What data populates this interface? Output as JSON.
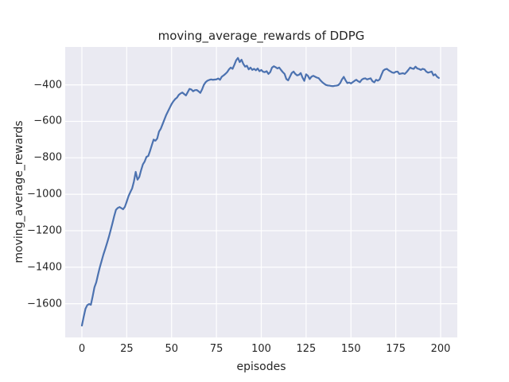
{
  "figure": {
    "title": "moving_average_rewards of DDPG",
    "xlabel": "episodes",
    "ylabel": "moving_average_rewards"
  },
  "chart_data": {
    "type": "line",
    "title": "moving_average_rewards of DDPG",
    "xlabel": "episodes",
    "ylabel": "moving_average_rewards",
    "x_ticks": [
      0,
      25,
      50,
      75,
      100,
      125,
      150,
      175,
      200
    ],
    "y_ticks": [
      -400,
      -600,
      -800,
      -1000,
      -1200,
      -1400,
      -1600
    ],
    "xlim": [
      -9.3,
      209.3
    ],
    "ylim": [
      -1785,
      -192
    ],
    "grid": true,
    "legend": "none",
    "style": "seaborn-darkgrid",
    "plot_background": "#eaeaf2",
    "grid_color": "#ffffff",
    "line_color": "#4c72b0",
    "line_width": 2.2,
    "series": [
      {
        "name": "moving_average_rewards",
        "x_start": 0,
        "x_step": 1,
        "y": [
          -1720,
          -1672,
          -1628,
          -1608,
          -1602,
          -1606,
          -1560,
          -1510,
          -1483,
          -1440,
          -1400,
          -1365,
          -1330,
          -1300,
          -1268,
          -1235,
          -1198,
          -1160,
          -1120,
          -1085,
          -1075,
          -1070,
          -1076,
          -1082,
          -1068,
          -1040,
          -1010,
          -988,
          -968,
          -930,
          -877,
          -920,
          -905,
          -868,
          -836,
          -820,
          -795,
          -790,
          -762,
          -730,
          -700,
          -706,
          -694,
          -656,
          -640,
          -615,
          -590,
          -565,
          -545,
          -525,
          -505,
          -490,
          -478,
          -470,
          -455,
          -447,
          -442,
          -450,
          -458,
          -440,
          -422,
          -425,
          -435,
          -429,
          -428,
          -435,
          -444,
          -425,
          -400,
          -385,
          -377,
          -373,
          -370,
          -372,
          -371,
          -370,
          -365,
          -372,
          -355,
          -348,
          -340,
          -330,
          -315,
          -305,
          -312,
          -290,
          -265,
          -252,
          -275,
          -262,
          -285,
          -300,
          -295,
          -315,
          -305,
          -318,
          -312,
          -320,
          -310,
          -325,
          -318,
          -328,
          -330,
          -325,
          -340,
          -330,
          -305,
          -298,
          -303,
          -310,
          -305,
          -318,
          -330,
          -340,
          -368,
          -375,
          -355,
          -335,
          -327,
          -340,
          -348,
          -345,
          -335,
          -360,
          -378,
          -342,
          -350,
          -368,
          -355,
          -350,
          -355,
          -360,
          -363,
          -375,
          -385,
          -393,
          -400,
          -403,
          -404,
          -406,
          -407,
          -405,
          -404,
          -401,
          -390,
          -370,
          -356,
          -375,
          -390,
          -387,
          -392,
          -385,
          -378,
          -372,
          -380,
          -385,
          -372,
          -366,
          -364,
          -370,
          -367,
          -364,
          -380,
          -386,
          -372,
          -377,
          -370,
          -345,
          -322,
          -315,
          -312,
          -320,
          -326,
          -332,
          -334,
          -328,
          -327,
          -340,
          -338,
          -336,
          -340,
          -330,
          -318,
          -305,
          -310,
          -312,
          -300,
          -310,
          -313,
          -318,
          -312,
          -315,
          -327,
          -333,
          -330,
          -327,
          -348,
          -342,
          -355,
          -362
        ]
      }
    ]
  }
}
